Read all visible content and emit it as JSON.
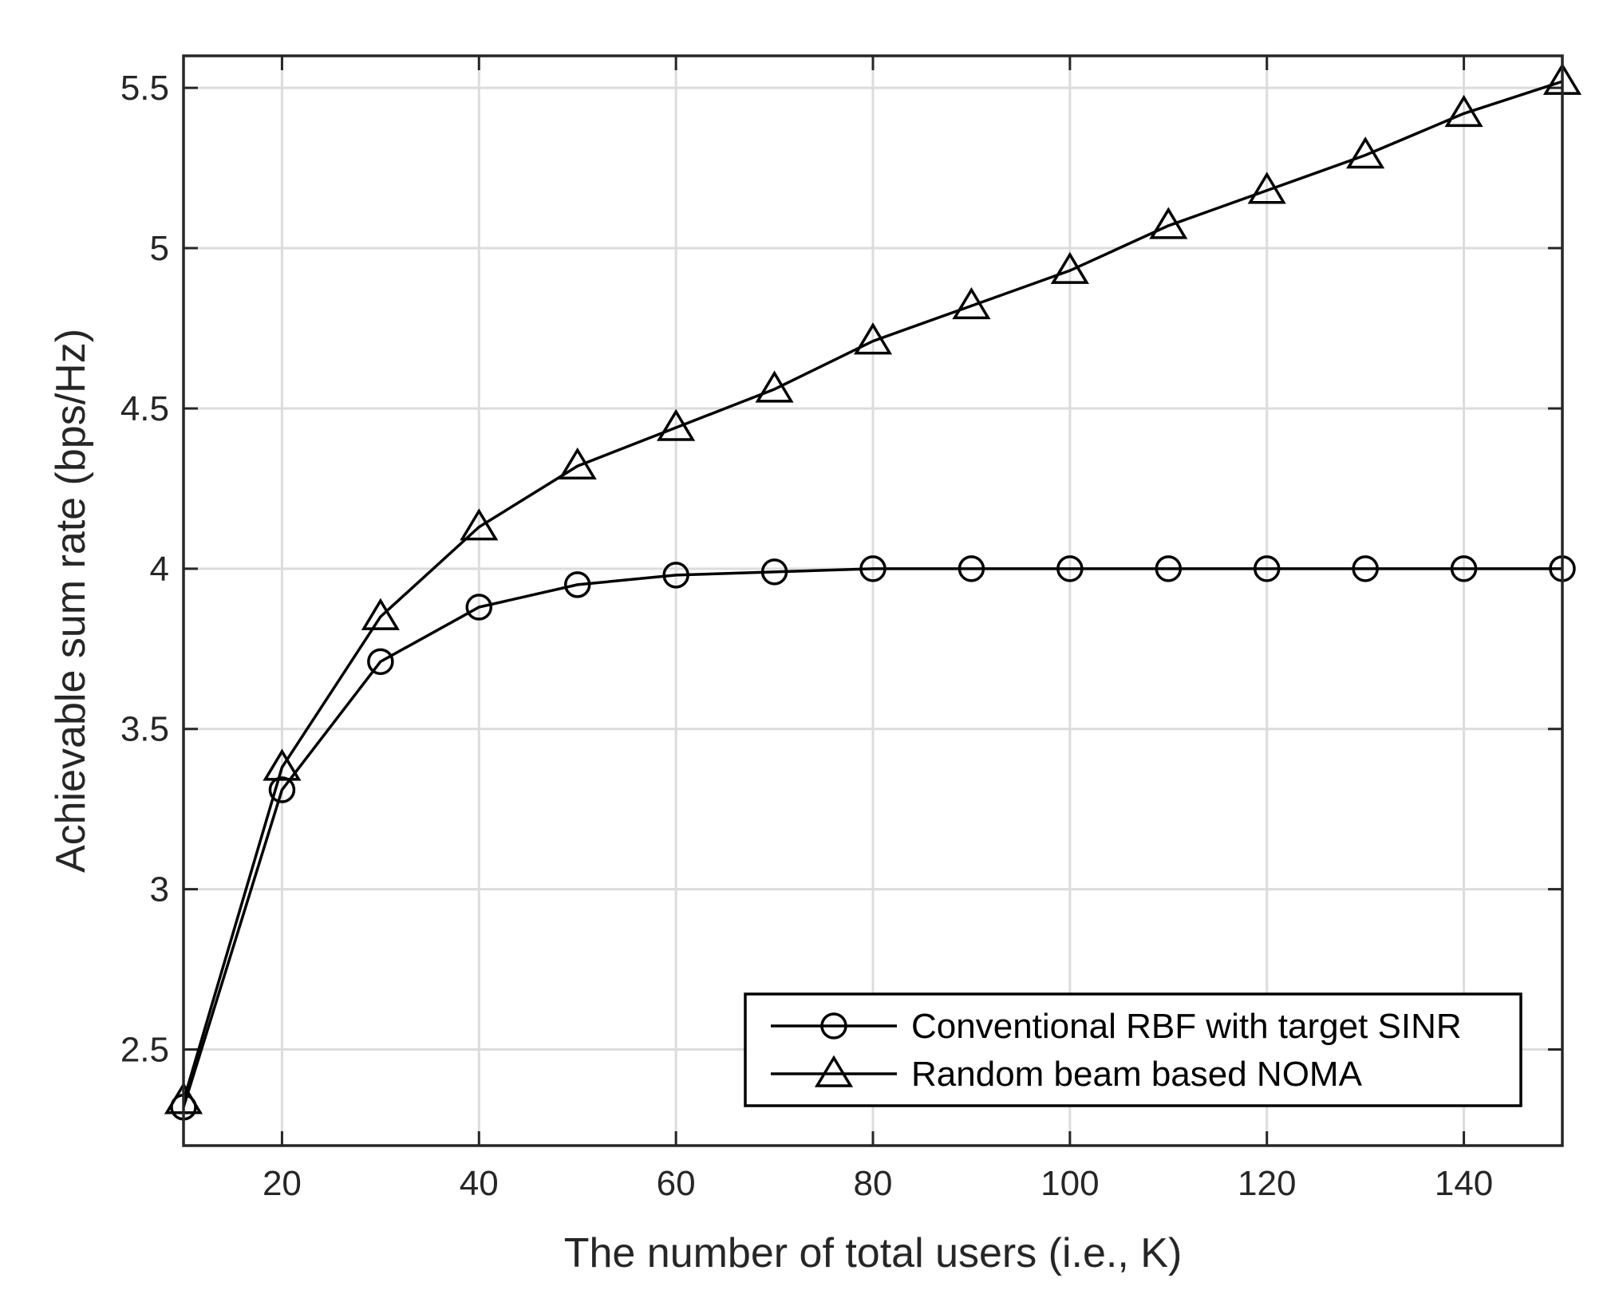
{
  "chart_data": {
    "type": "line",
    "title": "",
    "xlabel": "The number of total users (i.e., K)",
    "ylabel": "Achievable sum rate (bps/Hz)",
    "xlim": [
      10,
      150
    ],
    "ylim": [
      2.2,
      5.6
    ],
    "xticks": [
      20,
      40,
      60,
      80,
      100,
      120,
      140
    ],
    "xtick_labels": [
      "20",
      "40",
      "60",
      "80",
      "100",
      "120",
      "140"
    ],
    "yticks": [
      2.5,
      3,
      3.5,
      4,
      4.5,
      5,
      5.5
    ],
    "ytick_labels": [
      "2.5",
      "3",
      "3.5",
      "4",
      "4.5",
      "5",
      "5.5"
    ],
    "grid": true,
    "legend_position": "bottom-right",
    "x": [
      10,
      20,
      30,
      40,
      50,
      60,
      70,
      80,
      90,
      100,
      110,
      120,
      130,
      140,
      150
    ],
    "series": [
      {
        "name": "Conventional RBF with target SINR",
        "marker": "circle",
        "color": "#000000",
        "values": [
          2.32,
          3.31,
          3.71,
          3.88,
          3.95,
          3.98,
          3.99,
          4.0,
          4.0,
          4.0,
          4.0,
          4.0,
          4.0,
          4.0,
          4.0
        ]
      },
      {
        "name": "Random beam based NOMA",
        "marker": "triangle",
        "color": "#000000",
        "values": [
          2.34,
          3.38,
          3.85,
          4.13,
          4.32,
          4.44,
          4.56,
          4.71,
          4.82,
          4.93,
          5.07,
          5.18,
          5.29,
          5.42,
          5.52
        ]
      }
    ]
  },
  "colors": {
    "axes": "#262626",
    "grid": "#dcdcdc",
    "series": "#000000",
    "background": "#ffffff"
  }
}
